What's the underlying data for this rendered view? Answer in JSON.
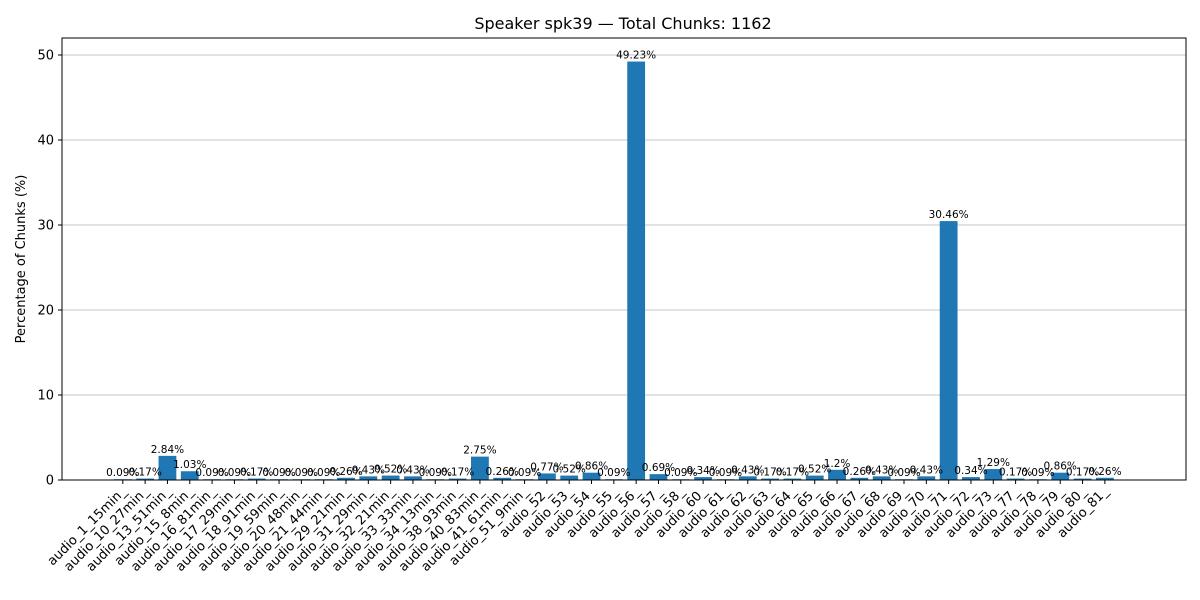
{
  "chart_data": {
    "type": "bar",
    "title": "Speaker spk39 — Total Chunks: 1162",
    "xlabel": "",
    "ylabel": "Percentage of Chunks (%)",
    "ylim": [
      0,
      52
    ],
    "yticks": [
      0,
      10,
      20,
      30,
      40,
      50
    ],
    "grid": "y",
    "bar_color": "#1f77b4",
    "categories": [
      "audio_1_15min_",
      "audio_10_27min_",
      "audio_13_51min_",
      "audio_15_8min_",
      "audio_16_81min_",
      "audio_17_29min_",
      "audio_18_91min_",
      "audio_19_59min_",
      "audio_20_48min_",
      "audio_21_44min_",
      "audio_29_21min_",
      "audio_31_29min_",
      "audio_32_21min_",
      "audio_33_33min_",
      "audio_34_13min_",
      "audio_38_93min_",
      "audio_40_83min_",
      "audio_41_61min_",
      "audio_51_9min_",
      "audio_52_",
      "audio_53_",
      "audio_54_",
      "audio_55_",
      "audio_56_",
      "audio_57_",
      "audio_58_",
      "audio_60_",
      "audio_61_",
      "audio_62_",
      "audio_63_",
      "audio_64_",
      "audio_65_",
      "audio_66_",
      "audio_67_",
      "audio_68_",
      "audio_69_",
      "audio_70_",
      "audio_71_",
      "audio_72_",
      "audio_73_",
      "audio_77_",
      "audio_78_",
      "audio_79_",
      "audio_80_",
      "audio_81_"
    ],
    "values": [
      0.09,
      0.17,
      2.84,
      1.03,
      0.09,
      0.09,
      0.17,
      0.09,
      0.09,
      0.09,
      0.26,
      0.43,
      0.52,
      0.43,
      0.09,
      0.17,
      2.75,
      0.26,
      0.09,
      0.77,
      0.52,
      0.86,
      0.09,
      49.23,
      0.69,
      0.09,
      0.34,
      0.09,
      0.43,
      0.17,
      0.17,
      0.52,
      1.2,
      0.26,
      0.43,
      0.09,
      0.43,
      30.46,
      0.34,
      1.29,
      0.17,
      0.09,
      0.86,
      0.17,
      0.26
    ],
    "data_labels": [
      "0.09%",
      "0.17%",
      "2.84%",
      "1.03%",
      "0.09%",
      "0.09%",
      "0.17%",
      "0.09%",
      "0.09%",
      "0.09%",
      "0.26%",
      "0.43%",
      "0.52%",
      "0.43%",
      "0.09%",
      "0.17%",
      "2.75%",
      "0.26%",
      "0.09%",
      "0.77%",
      "0.52%",
      "0.86%",
      "0.09%",
      "49.23%",
      "0.69%",
      "0.09%",
      "0.34%",
      "0.09%",
      "0.43%",
      "0.17%",
      "0.17%",
      "0.52%",
      "1.2%",
      "0.26%",
      "0.43%",
      "0.09%",
      "0.43%",
      "30.46%",
      "0.34%",
      "1.29%",
      "0.17%",
      "0.09%",
      "0.86%",
      "0.17%",
      "0.26%"
    ]
  }
}
